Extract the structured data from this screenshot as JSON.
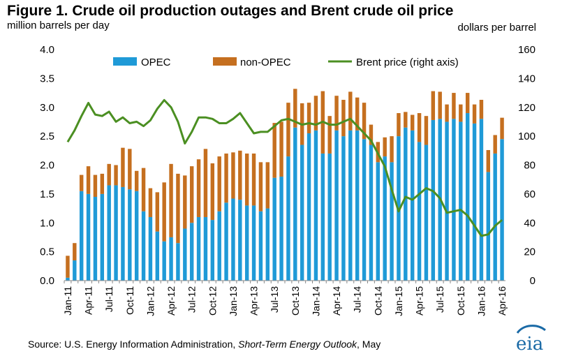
{
  "title": "Figure 1. Crude oil production outages and Brent crude oil price",
  "left_axis_unit": "million barrels per day",
  "right_axis_unit": "dollars per barrel",
  "source": {
    "prefix": "Source: U.S. Energy Information Administration,",
    "publication": "Short-Term Energy Outlook",
    "suffix": ", May"
  },
  "logo_text": "eia",
  "colors": {
    "opec": "#1f9ad7",
    "non_opec": "#c56f1f",
    "brent": "#4b8f22",
    "logo": "#1a6aa6"
  },
  "chart_data": {
    "type": "bar",
    "stacked": true,
    "x": [
      "Jan-11",
      "Feb-11",
      "Mar-11",
      "Apr-11",
      "May-11",
      "Jun-11",
      "Jul-11",
      "Aug-11",
      "Sep-11",
      "Oct-11",
      "Nov-11",
      "Dec-11",
      "Jan-12",
      "Feb-12",
      "Mar-12",
      "Apr-12",
      "May-12",
      "Jun-12",
      "Jul-12",
      "Aug-12",
      "Sep-12",
      "Oct-12",
      "Nov-12",
      "Dec-12",
      "Jan-13",
      "Feb-13",
      "Mar-13",
      "Apr-13",
      "May-13",
      "Jun-13",
      "Jul-13",
      "Aug-13",
      "Sep-13",
      "Oct-13",
      "Nov-13",
      "Dec-13",
      "Jan-14",
      "Feb-14",
      "Mar-14",
      "Apr-14",
      "May-14",
      "Jun-14",
      "Jul-14",
      "Aug-14",
      "Sep-14",
      "Oct-14",
      "Nov-14",
      "Dec-14",
      "Jan-15",
      "Feb-15",
      "Mar-15",
      "Apr-15",
      "May-15",
      "Jun-15",
      "Jul-15",
      "Aug-15",
      "Sep-15",
      "Oct-15",
      "Nov-15",
      "Dec-15",
      "Jan-16",
      "Feb-16",
      "Mar-16",
      "Apr-16"
    ],
    "tick_labels": [
      "Jan-11",
      "Apr-11",
      "Jul-11",
      "Oct-11",
      "Jan-12",
      "Apr-12",
      "Jul-12",
      "Oct-12",
      "Jan-13",
      "Apr-13",
      "Jul-13",
      "Oct-13",
      "Jan-14",
      "Apr-14",
      "Jul-14",
      "Oct-14",
      "Jan-15",
      "Apr-15",
      "Jul-15",
      "Oct-15",
      "Jan-16",
      "Apr-16"
    ],
    "series": [
      {
        "name": "OPEC",
        "axis": "left",
        "values": [
          0.05,
          0.35,
          1.55,
          1.5,
          1.45,
          1.5,
          1.65,
          1.65,
          1.62,
          1.58,
          1.55,
          1.2,
          1.1,
          0.85,
          0.68,
          0.75,
          0.65,
          0.9,
          1.0,
          1.1,
          1.1,
          1.05,
          1.2,
          1.35,
          1.42,
          1.4,
          1.3,
          1.3,
          1.2,
          1.25,
          1.78,
          1.8,
          2.15,
          2.65,
          2.35,
          2.55,
          2.6,
          2.2,
          2.2,
          2.6,
          2.5,
          2.6,
          2.6,
          2.45,
          2.35,
          2.05,
          2.15,
          2.05,
          2.5,
          2.65,
          2.6,
          2.4,
          2.35,
          2.78,
          2.8,
          2.75,
          2.8,
          2.75,
          2.9,
          2.72,
          2.8,
          1.88,
          2.2,
          2.45
        ]
      },
      {
        "name": "non-OPEC",
        "axis": "left",
        "values": [
          0.38,
          0.3,
          0.28,
          0.48,
          0.38,
          0.35,
          0.37,
          0.35,
          0.68,
          0.7,
          0.35,
          0.75,
          0.5,
          0.68,
          1.02,
          1.27,
          1.2,
          0.92,
          0.98,
          1.0,
          1.18,
          0.98,
          0.95,
          0.85,
          0.8,
          0.85,
          0.9,
          0.9,
          0.85,
          0.8,
          0.95,
          0.95,
          0.93,
          0.67,
          0.72,
          0.53,
          0.6,
          1.08,
          0.65,
          0.6,
          0.63,
          0.67,
          0.57,
          0.63,
          0.35,
          0.35,
          0.33,
          0.45,
          0.4,
          0.27,
          0.27,
          0.5,
          0.5,
          0.5,
          0.47,
          0.3,
          0.45,
          0.3,
          0.35,
          0.33,
          0.33,
          0.38,
          0.32,
          0.37
        ]
      },
      {
        "name": "Brent price (right axis)",
        "axis": "right",
        "type": "line",
        "values": [
          96,
          104,
          114,
          123,
          115,
          114,
          117,
          110,
          113,
          109,
          110,
          107,
          111,
          119,
          125,
          120,
          110,
          95,
          103,
          113,
          113,
          112,
          109,
          109,
          112,
          116,
          109,
          102,
          103,
          103,
          107,
          111,
          112,
          110,
          108,
          109,
          108,
          110,
          108,
          108,
          110,
          112,
          107,
          102,
          97,
          88,
          79,
          63,
          48,
          58,
          56,
          60,
          64,
          62,
          57,
          47,
          48,
          49,
          45,
          38,
          31,
          32,
          38,
          42
        ]
      }
    ],
    "left_axis": {
      "min": 0,
      "max": 4.0,
      "ticks": [
        "0.0",
        "0.5",
        "1.0",
        "1.5",
        "2.0",
        "2.5",
        "3.0",
        "3.5",
        "4.0"
      ]
    },
    "right_axis": {
      "min": 0,
      "max": 160,
      "ticks": [
        "0",
        "20",
        "40",
        "60",
        "80",
        "100",
        "120",
        "140",
        "160"
      ]
    },
    "legend": [
      "OPEC",
      "non-OPEC",
      "Brent price (right axis)"
    ],
    "legend_position": "top",
    "grid": false
  }
}
